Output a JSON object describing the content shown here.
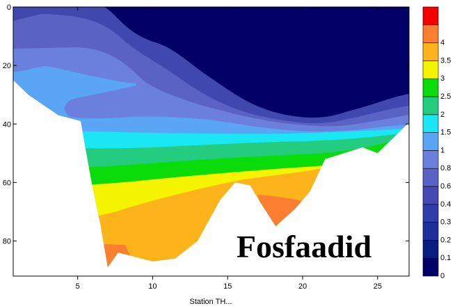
{
  "chart_data": {
    "type": "heatmap",
    "title": "Fosfaadid",
    "xlabel": "Station TH...",
    "ylabel": "",
    "xlim": [
      0.7,
      27.1
    ],
    "ylim": [
      0,
      92
    ],
    "y_inverted": true,
    "x_ticks": [
      5,
      10,
      15,
      20,
      25
    ],
    "y_ticks": [
      0,
      20,
      40,
      60,
      80
    ],
    "y_tick_labels": [
      "0",
      "20",
      "40",
      "60",
      "80"
    ],
    "grid": false,
    "colorbar": {
      "placement": "right",
      "levels": [
        0,
        0.1,
        0.2,
        0.3,
        0.4,
        0.6,
        0.8,
        1,
        1.5,
        2,
        2.5,
        3,
        3.5,
        4
      ],
      "labels": [
        "0",
        "0.1",
        "0.2",
        "0.3",
        "0.4",
        "0.6",
        "0.8",
        "1",
        "1.5",
        "2",
        "2.5",
        "3",
        "3.5",
        "4"
      ],
      "colors": [
        "#000066",
        "#0a1c80",
        "#1f2f9a",
        "#303ca8",
        "#4648b4",
        "#5a62c4",
        "#6a80dc",
        "#5aa6f4",
        "#1ae6f4",
        "#24cc80",
        "#0adc0a",
        "#f4f400",
        "#fcb41a",
        "#fc7e30",
        "#f40000"
      ]
    },
    "bathymetry_bottom": [
      [
        0.7,
        25
      ],
      [
        1.7,
        30
      ],
      [
        3.7,
        37
      ],
      [
        5.2,
        39
      ],
      [
        5.5,
        48
      ],
      [
        6.0,
        62
      ],
      [
        6.5,
        74
      ],
      [
        7.0,
        89
      ],
      [
        7.7,
        84
      ],
      [
        8.5,
        85
      ],
      [
        10.0,
        87
      ],
      [
        11.5,
        86
      ],
      [
        13.0,
        80
      ],
      [
        14.5,
        66
      ],
      [
        15.5,
        60
      ],
      [
        16.5,
        61
      ],
      [
        17.2,
        67
      ],
      [
        18.2,
        75
      ],
      [
        19.5,
        69
      ],
      [
        20.5,
        63
      ],
      [
        21.5,
        52
      ],
      [
        24.0,
        48
      ],
      [
        25.0,
        50
      ],
      [
        27.0,
        40
      ]
    ]
  },
  "overlay": {
    "title": "Fosfaadid"
  }
}
